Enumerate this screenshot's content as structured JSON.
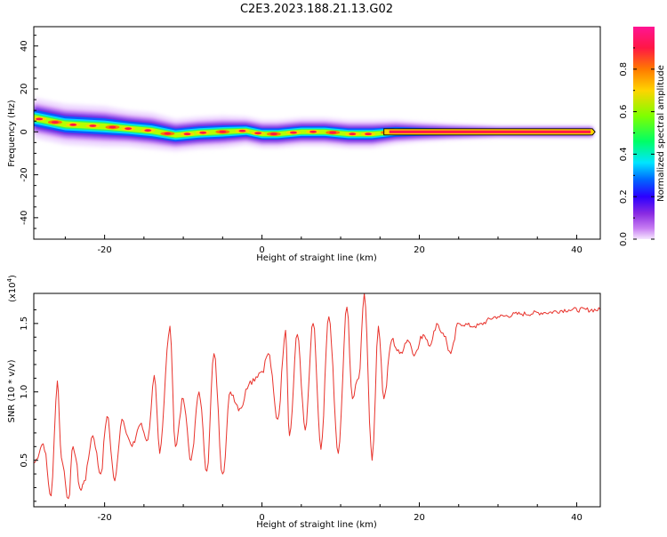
{
  "title": "C2E3.2023.188.21.13.G02",
  "colors": {
    "snr_line": "#e8322b",
    "track_outline": "#000000",
    "colormap": [
      "#f0d8ff",
      "#c87ff2",
      "#8a2be2",
      "#2b00ff",
      "#0066ff",
      "#00e5ff",
      "#00ff66",
      "#7fff00",
      "#ffd400",
      "#ff7a00",
      "#ff1744",
      "#ff1493"
    ]
  },
  "chart_data": [
    {
      "type": "heatmap",
      "panel": "spectrogram",
      "xlabel": "Height of straight line (km)",
      "ylabel": "Frequency (Hz)",
      "xlim": [
        -29,
        43
      ],
      "ylim": [
        -50,
        49
      ],
      "xticks": [
        -20,
        0,
        20,
        40
      ],
      "yticks": [
        -40,
        -20,
        0,
        20,
        40
      ],
      "colorbar": {
        "label": "Normalized spectral amplitude",
        "range": [
          0.0,
          1.0
        ],
        "ticks": [
          "0.0",
          "0.2",
          "0.4",
          "0.6",
          "0.8"
        ],
        "colormap": "rainbow"
      },
      "ridge": {
        "x": [
          -29,
          -25,
          -20,
          -17,
          -14,
          -11,
          -8,
          -5,
          -2,
          0,
          2,
          5,
          8,
          11,
          14,
          17,
          20,
          24,
          30,
          36,
          42
        ],
        "freq": [
          6.5,
          3.5,
          2.5,
          1.5,
          0.5,
          -1.5,
          -0.5,
          0,
          0.5,
          -1,
          -1,
          0,
          0,
          -1,
          -1,
          0,
          0,
          0,
          0,
          0,
          0
        ],
        "spread": [
          5,
          5,
          5,
          4.5,
          4.5,
          4,
          4,
          4,
          3.5,
          3.5,
          3.5,
          3.5,
          3.5,
          3.5,
          3.5,
          3,
          2.5,
          2,
          1.5,
          1.5,
          1.5
        ]
      }
    },
    {
      "type": "line",
      "panel": "snr",
      "xlabel": "Height of straight line (km)",
      "ylabel": "SNR (10 * v/v)",
      "multiplier": "(x10",
      "multiplier_exp": "4",
      "multiplier_close": ")",
      "xlim": [
        -29,
        43
      ],
      "ylim": [
        0.16,
        1.72
      ],
      "xticks": [
        -20,
        0,
        20,
        40
      ],
      "yticks": [
        0.5,
        1.0,
        1.5
      ],
      "series": [
        {
          "x": [
            -29,
            -27.8,
            -26.8,
            -26,
            -25.5,
            -24.6,
            -24,
            -23,
            -22.6,
            -21.5,
            -20.5,
            -19.7,
            -18.7,
            -17.8,
            -16.5,
            -15.5,
            -14.5,
            -13.7,
            -13,
            -11.7,
            -11,
            -10,
            -9,
            -8,
            -7,
            -6.1,
            -5,
            -4,
            -2.8,
            -1.5,
            0,
            0.8,
            2,
            3,
            3.5,
            4.5,
            5.5,
            6.5,
            7.5,
            8.5,
            9.7,
            10.8,
            11.5,
            12.3,
            13,
            14,
            14.8,
            15.5,
            16.5,
            17.5,
            18.5,
            19.5,
            20.5,
            21.5,
            22.2,
            23,
            24,
            25,
            27,
            30,
            33,
            36,
            39,
            43
          ],
          "y": [
            0.48,
            0.62,
            0.24,
            1.08,
            0.52,
            0.22,
            0.6,
            0.28,
            0.35,
            0.68,
            0.4,
            0.82,
            0.35,
            0.8,
            0.6,
            0.76,
            0.65,
            1.12,
            0.55,
            1.48,
            0.6,
            0.95,
            0.5,
            1.0,
            0.42,
            1.28,
            0.4,
            1.0,
            0.88,
            1.08,
            1.15,
            1.28,
            0.8,
            1.45,
            0.68,
            1.42,
            0.72,
            1.5,
            0.58,
            1.55,
            0.55,
            1.62,
            0.95,
            1.1,
            1.72,
            0.5,
            1.48,
            0.95,
            1.38,
            1.28,
            1.38,
            1.28,
            1.42,
            1.35,
            1.5,
            1.43,
            1.28,
            1.5,
            1.48,
            1.55,
            1.57,
            1.58,
            1.6,
            1.6
          ]
        }
      ]
    }
  ]
}
